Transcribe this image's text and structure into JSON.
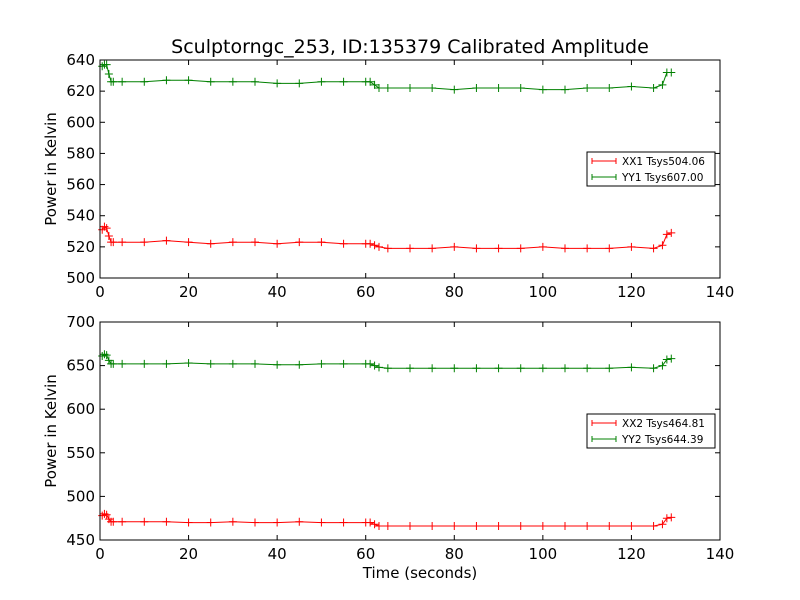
{
  "figure": {
    "title": "Sculptorngc_253, ID:135379 Calibrated Amplitude"
  },
  "chart_data": [
    {
      "type": "line",
      "title": "Sculptorngc_253, ID:135379 Calibrated Amplitude",
      "xlabel": "",
      "ylabel": "Power in Kelvin",
      "xlim": [
        0,
        140
      ],
      "ylim": [
        500,
        640
      ],
      "xticks": [
        0,
        20,
        40,
        60,
        80,
        100,
        120,
        140
      ],
      "yticks": [
        500,
        520,
        540,
        560,
        580,
        600,
        620,
        640
      ],
      "grid": false,
      "legend_position": "center-right",
      "marker": "plus",
      "series": [
        {
          "name": "XX1 Tsys504.06",
          "color": "#ff0000",
          "x": [
            0.5,
            1,
            1.5,
            2,
            2.5,
            3,
            5,
            10,
            15,
            20,
            25,
            30,
            35,
            40,
            45,
            50,
            55,
            60,
            61,
            62,
            63,
            65,
            70,
            75,
            80,
            85,
            90,
            95,
            100,
            105,
            110,
            115,
            120,
            125,
            127,
            128,
            129
          ],
          "y": [
            531,
            533,
            532,
            527,
            523,
            523,
            523,
            523,
            524,
            523,
            522,
            523,
            523,
            522,
            523,
            523,
            522,
            522,
            522,
            521,
            520,
            519,
            519,
            519,
            520,
            519,
            519,
            519,
            520,
            519,
            519,
            519,
            520,
            519,
            521,
            528,
            529
          ]
        },
        {
          "name": "YY1 Tsys607.00",
          "color": "#008000",
          "x": [
            0.5,
            1,
            1.5,
            2,
            2.5,
            3,
            5,
            10,
            15,
            20,
            25,
            30,
            35,
            40,
            45,
            50,
            55,
            60,
            61,
            62,
            63,
            65,
            70,
            75,
            80,
            85,
            90,
            95,
            100,
            105,
            110,
            115,
            120,
            125,
            127,
            128,
            129
          ],
          "y": [
            636,
            637,
            637,
            631,
            626,
            626,
            626,
            626,
            627,
            627,
            626,
            626,
            626,
            625,
            625,
            626,
            626,
            626,
            626,
            624,
            622,
            622,
            622,
            622,
            621,
            622,
            622,
            622,
            621,
            621,
            622,
            622,
            623,
            622,
            624,
            632,
            632
          ]
        }
      ]
    },
    {
      "type": "line",
      "title": "",
      "xlabel": "Time (seconds)",
      "ylabel": "Power in Kelvin",
      "xlim": [
        0,
        140
      ],
      "ylim": [
        450,
        700
      ],
      "xticks": [
        0,
        20,
        40,
        60,
        80,
        100,
        120,
        140
      ],
      "yticks": [
        450,
        500,
        550,
        600,
        650,
        700
      ],
      "grid": false,
      "legend_position": "center-right",
      "marker": "plus",
      "series": [
        {
          "name": "XX2 Tsys464.81",
          "color": "#ff0000",
          "x": [
            0.5,
            1,
            1.5,
            2,
            2.5,
            3,
            5,
            10,
            15,
            20,
            25,
            30,
            35,
            40,
            45,
            50,
            55,
            60,
            61,
            62,
            63,
            65,
            70,
            75,
            80,
            85,
            90,
            95,
            100,
            105,
            110,
            115,
            120,
            125,
            127,
            128,
            129
          ],
          "y": [
            478,
            480,
            479,
            474,
            471,
            471,
            471,
            471,
            471,
            470,
            470,
            471,
            470,
            470,
            471,
            470,
            470,
            470,
            470,
            468,
            466,
            466,
            466,
            466,
            466,
            466,
            466,
            466,
            466,
            466,
            466,
            466,
            466,
            466,
            468,
            475,
            476
          ]
        },
        {
          "name": "YY2 Tsys644.39",
          "color": "#008000",
          "x": [
            0.5,
            1,
            1.5,
            2,
            2.5,
            3,
            5,
            10,
            15,
            20,
            25,
            30,
            35,
            40,
            45,
            50,
            55,
            60,
            61,
            62,
            63,
            65,
            70,
            75,
            80,
            85,
            90,
            95,
            100,
            105,
            110,
            115,
            120,
            125,
            127,
            128,
            129
          ],
          "y": [
            661,
            663,
            662,
            656,
            652,
            652,
            652,
            652,
            652,
            653,
            652,
            652,
            652,
            651,
            651,
            652,
            652,
            652,
            652,
            650,
            648,
            647,
            647,
            647,
            647,
            647,
            647,
            647,
            647,
            647,
            647,
            647,
            648,
            647,
            650,
            657,
            658
          ]
        }
      ]
    }
  ]
}
